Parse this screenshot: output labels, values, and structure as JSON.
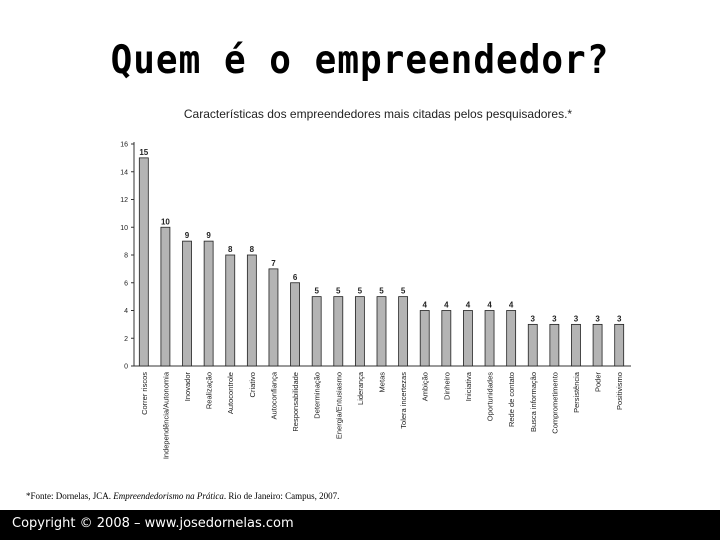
{
  "slide": {
    "title": "Quem é o empreendedor?",
    "footnote_prefix": "*Fonte: Dornelas, JCA. ",
    "footnote_book": "Empreendedorismo na Prática",
    "footnote_suffix": ". Rio de Janeiro: Campus, 2007.",
    "footer": "Copyright © 2008 – www.josedornelas.com"
  },
  "chart_data": {
    "type": "bar",
    "title": "Características dos empreendedores mais citadas pelos pesquisadores.*",
    "xlabel": "",
    "ylabel": "",
    "ylim": [
      0,
      16
    ],
    "yticks": [
      0,
      2,
      4,
      6,
      8,
      10,
      12,
      14,
      16
    ],
    "grid": false,
    "legend": "none",
    "categories": [
      "Correr riscos",
      "Independência/Autonomia",
      "Inovador",
      "Realização",
      "Autocontrole",
      "Criativo",
      "Autoconfiança",
      "Responsabilidade",
      "Determinação",
      "Energia/Entusiasmo",
      "Liderança",
      "Metas",
      "Tolera incertezas",
      "Ambição",
      "Dinheiro",
      "Iniciativa",
      "Oportunidades",
      "Rede de contato",
      "Busca informação",
      "Comprometimento",
      "Persistência",
      "Poder",
      "Positivismo"
    ],
    "values": [
      15,
      10,
      9,
      9,
      8,
      8,
      7,
      6,
      5,
      5,
      5,
      5,
      5,
      4,
      4,
      4,
      4,
      4,
      3,
      3,
      3,
      3,
      3
    ],
    "bar_color": "#b4b4b4",
    "bar_stroke": "#222222"
  }
}
